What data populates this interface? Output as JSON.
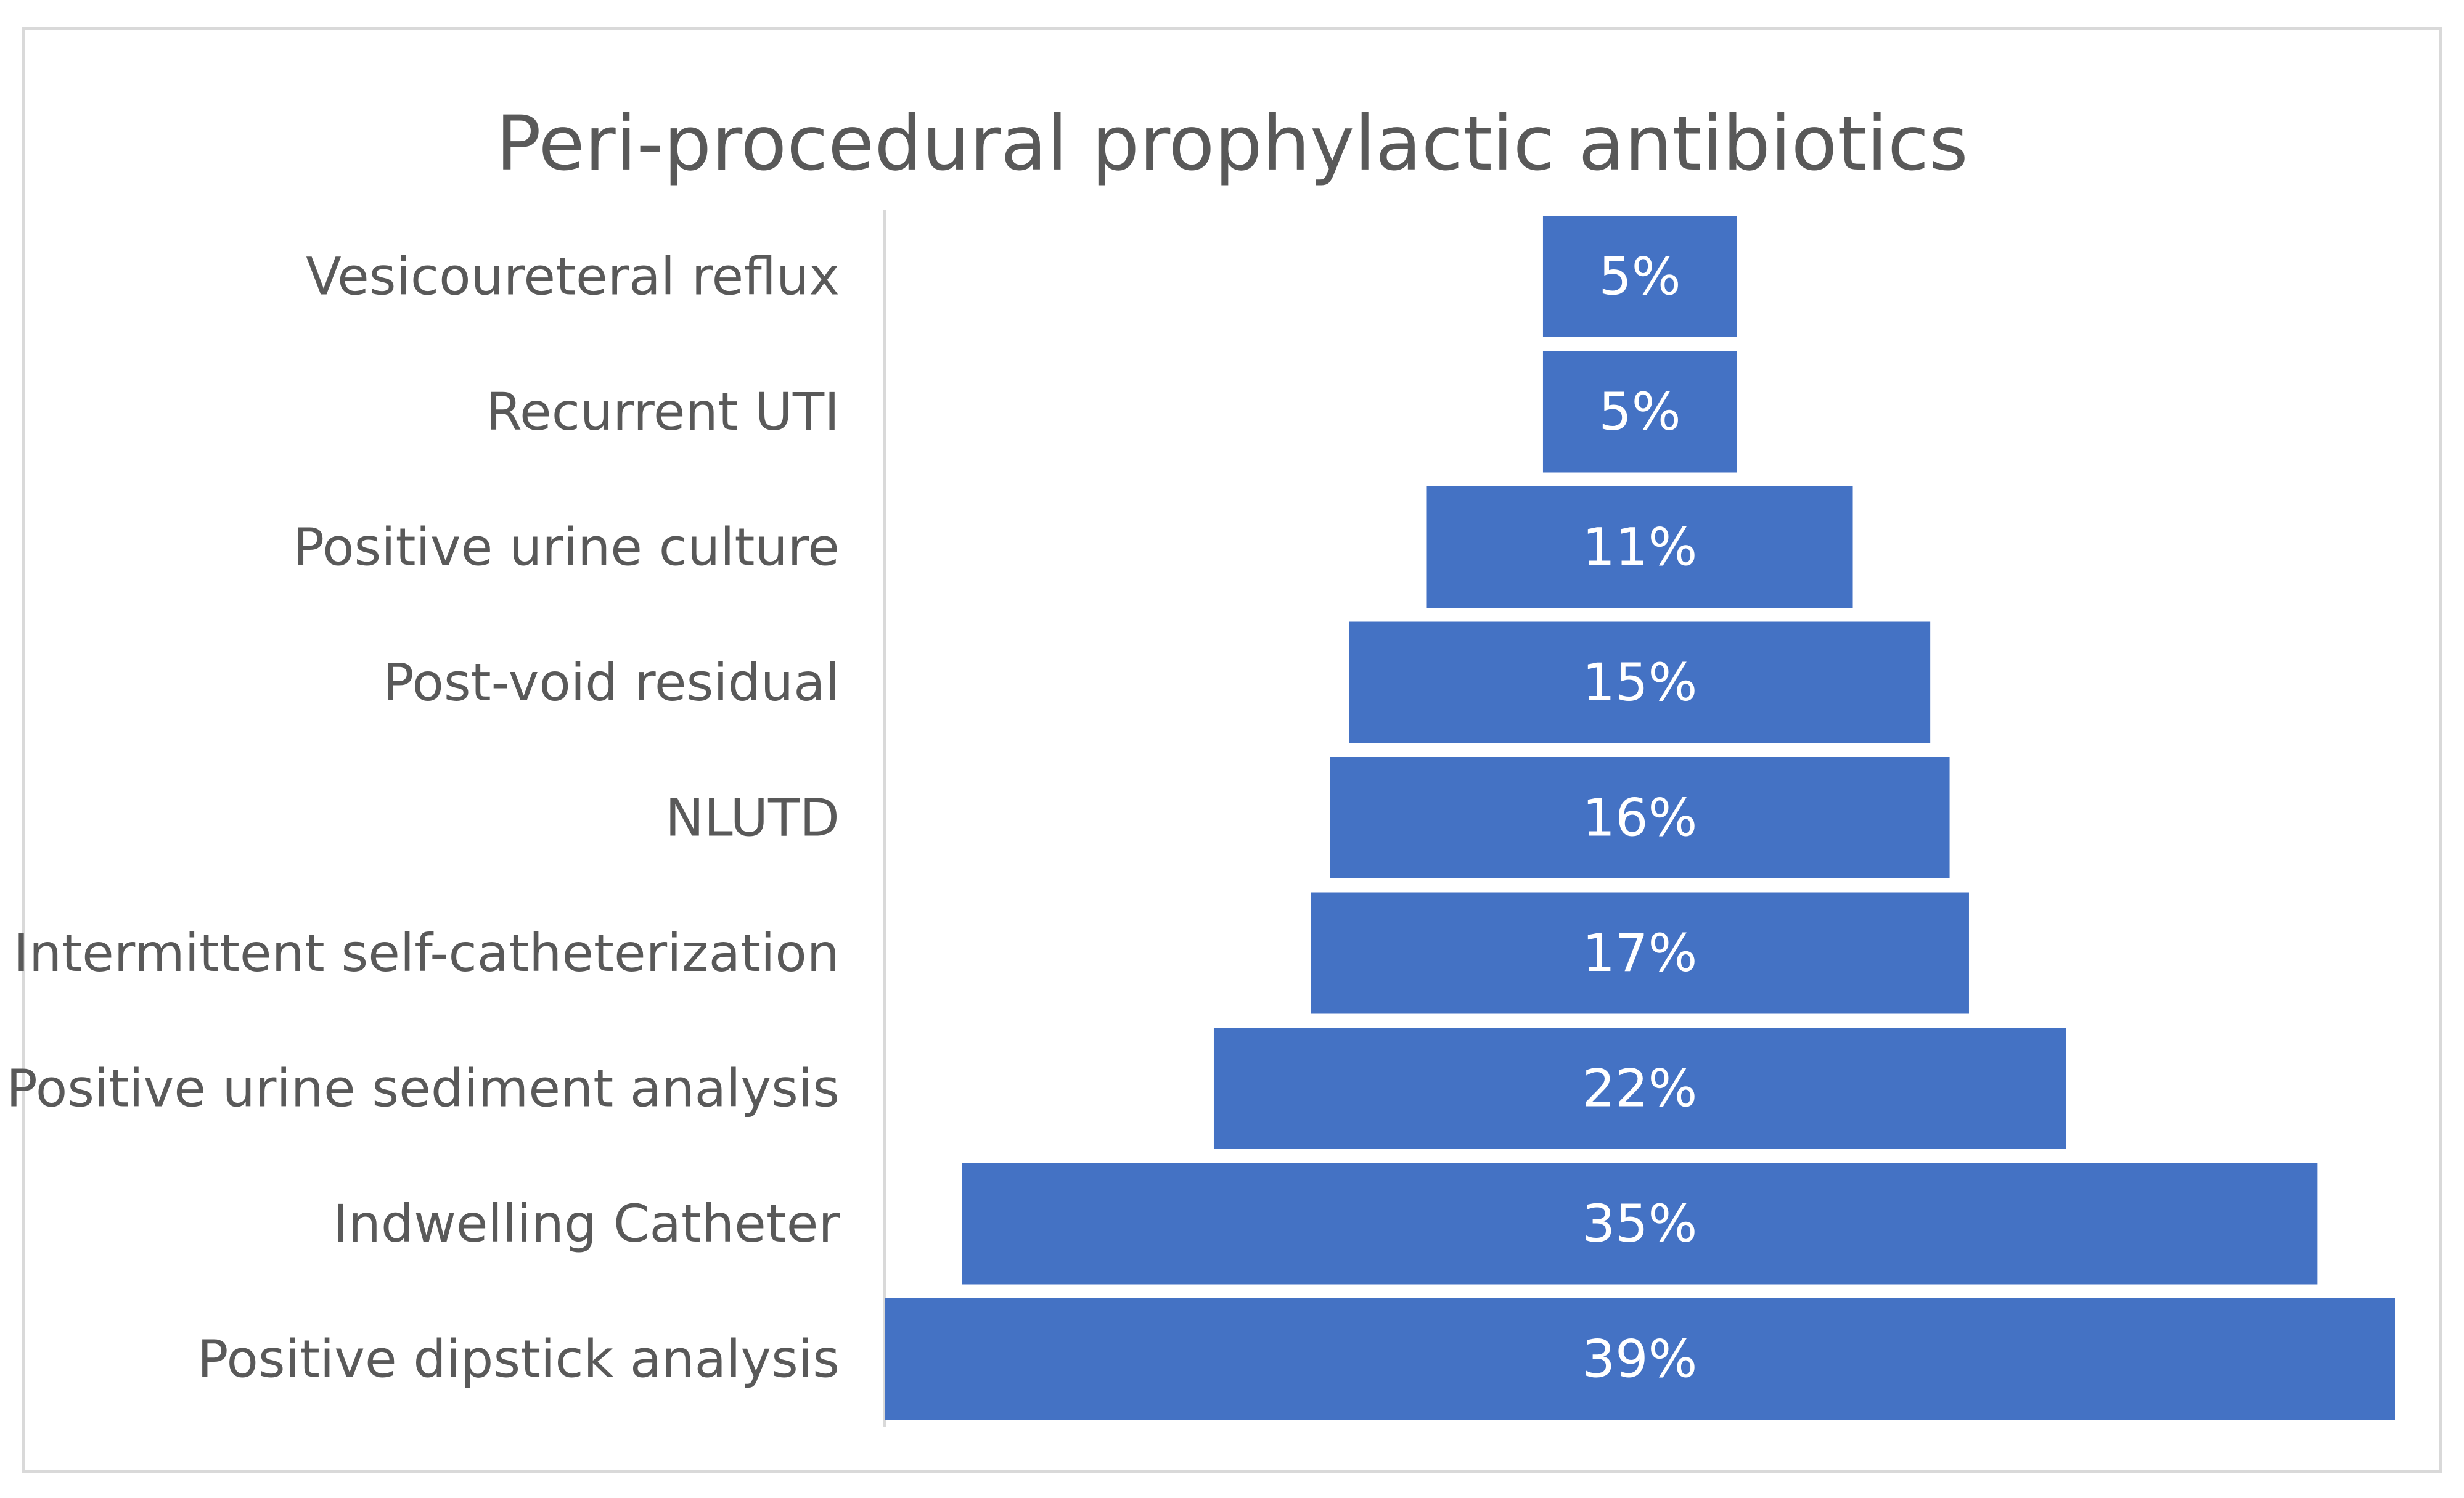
{
  "chart_data": {
    "type": "bar",
    "subtype": "funnel",
    "title": "Peri-procedural prophylactic antibiotics",
    "categories": [
      "Vesicoureteral reflux",
      "Recurrent UTI",
      "Positive urine culture",
      "Post-void residual",
      "NLUTD",
      "Intermittent self-catheterization",
      "Positive urine sediment analysis",
      "Indwelling Catheter",
      "Positive dipstick analysis"
    ],
    "values": [
      5,
      5,
      11,
      15,
      16,
      17,
      22,
      35,
      39
    ],
    "data_labels": [
      "5%",
      "5%",
      "11%",
      "15%",
      "16%",
      "17%",
      "22%",
      "35%",
      "39%"
    ],
    "value_unit": "%",
    "xlim": [
      0,
      39
    ],
    "xlabel": "",
    "ylabel": "",
    "grid": false,
    "legend": "none",
    "colors": {
      "bar": "#4472c4",
      "bar_label": "#ffffff",
      "category_label": "#595959",
      "title": "#595959",
      "axis": "#d9d9d9"
    }
  }
}
